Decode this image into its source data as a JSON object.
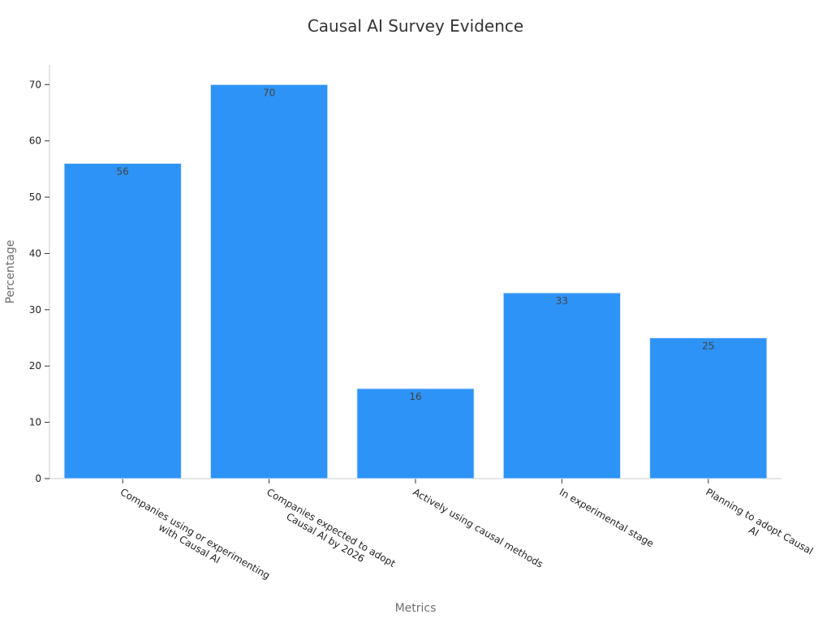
{
  "chart_data": {
    "type": "bar",
    "title": "Causal AI Survey Evidence",
    "xlabel": "Metrics",
    "ylabel": "Percentage",
    "categories": [
      [
        "Companies using or experimenting",
        "with Causal AI"
      ],
      [
        "Companies expected to adopt",
        "Causal AI by 2026"
      ],
      [
        "Actively using causal methods"
      ],
      [
        "In experimental stage"
      ],
      [
        "Planning to adopt Causal",
        "AI"
      ]
    ],
    "values": [
      56,
      70,
      16,
      33,
      25
    ],
    "ylim": [
      0,
      73.5
    ],
    "yticks": [
      0,
      10,
      20,
      30,
      40,
      50,
      60,
      70
    ],
    "bar_color": "#2e93f7",
    "grid": false,
    "show_data_labels": true
  }
}
